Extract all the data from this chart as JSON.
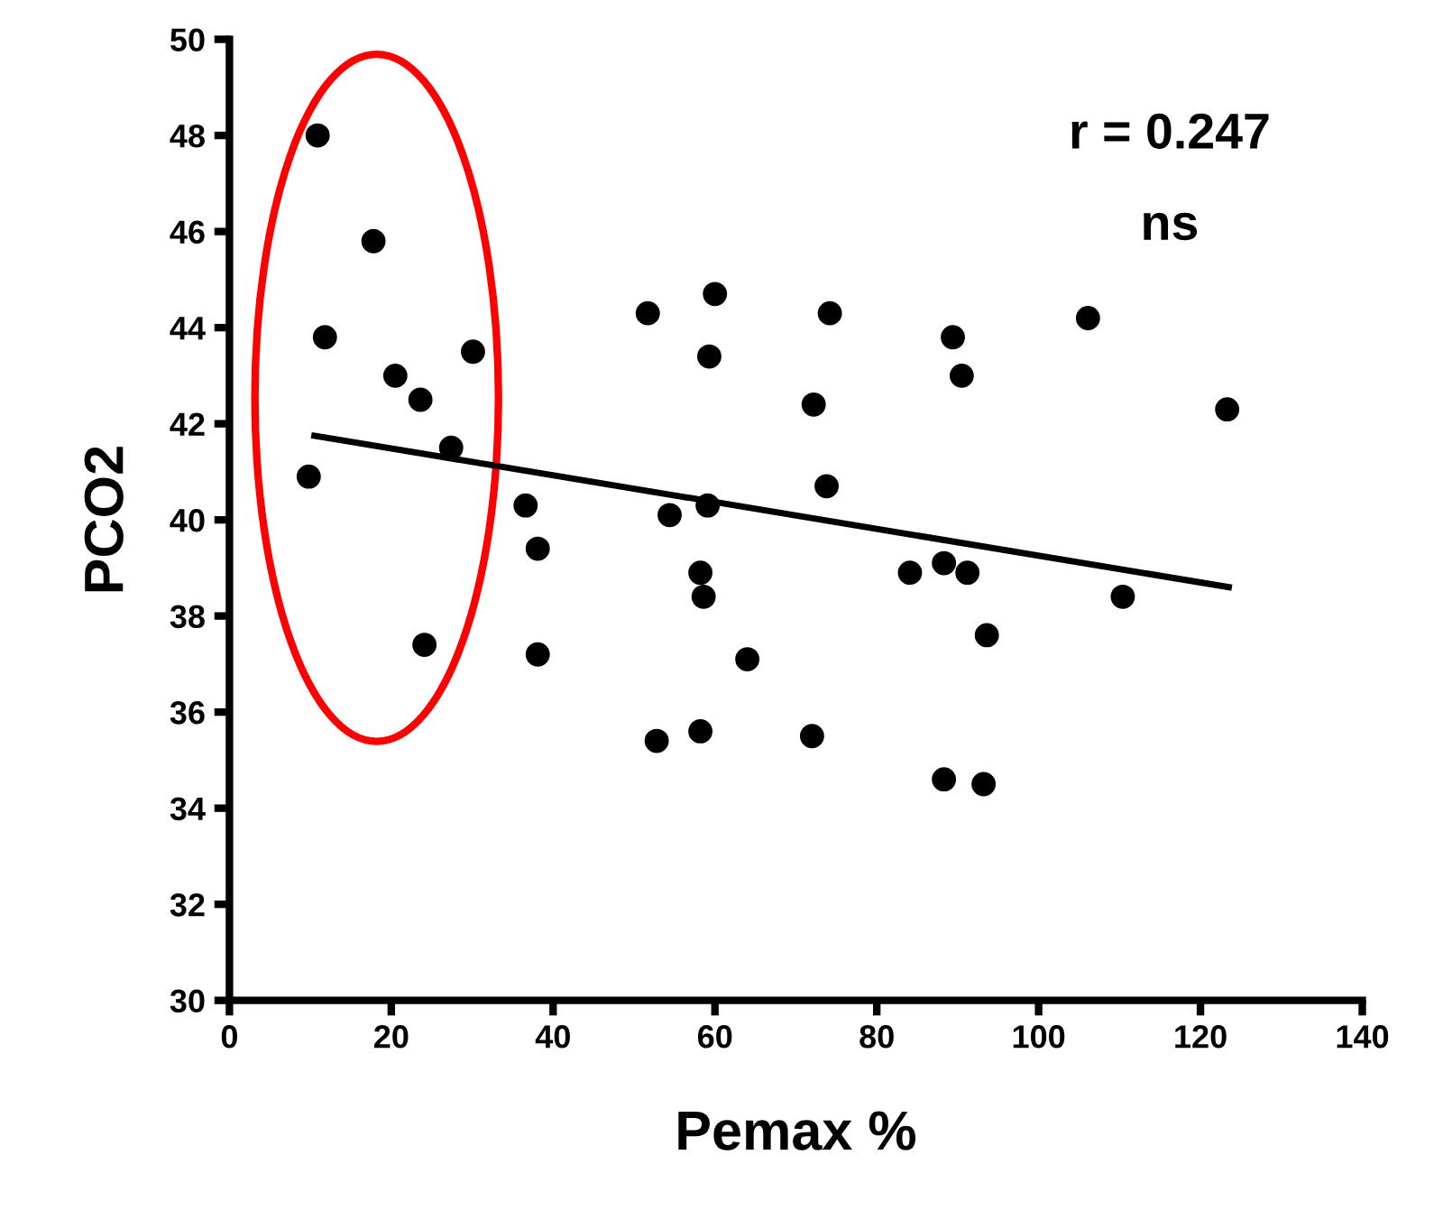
{
  "chart_data": {
    "type": "scatter",
    "xlabel": "Pemax %",
    "ylabel": "PCO2",
    "annotations": [
      "r = 0.247",
      "ns"
    ],
    "xlim": [
      0,
      140
    ],
    "xticks": [
      0,
      20,
      40,
      60,
      80,
      100,
      120,
      140
    ],
    "ylim": [
      30,
      50
    ],
    "yticks": [
      30,
      32,
      34,
      36,
      38,
      40,
      42,
      44,
      46,
      48,
      50
    ],
    "grid": false,
    "series": [
      {
        "marker": "circle",
        "color": "#000000",
        "x": [
          10.9,
          17.8,
          11.8,
          20.5,
          23.6,
          24.1,
          30.1,
          27.4,
          9.8,
          36.6,
          38.1,
          38.1,
          51.7,
          60,
          59.3,
          54.4,
          59.1,
          58.2,
          58.6,
          64,
          52.8,
          58.2,
          74.2,
          72.2,
          73.8,
          72,
          84.1,
          88.3,
          91.2,
          89.4,
          90.5,
          93.6,
          88.3,
          93.2,
          106.1,
          110.4,
          123.3
        ],
        "values": [
          48.0,
          45.8,
          43.8,
          43.0,
          42.5,
          37.4,
          43.5,
          41.5,
          40.9,
          40.3,
          39.4,
          37.2,
          44.3,
          44.7,
          43.4,
          40.1,
          40.3,
          38.9,
          38.4,
          37.1,
          35.4,
          35.6,
          44.3,
          42.4,
          40.7,
          35.5,
          38.9,
          39.1,
          38.9,
          43.8,
          43.0,
          37.6,
          34.6,
          34.5,
          44.2,
          38.4,
          42.3
        ]
      },
      {
        "type": "line",
        "color": "#000000",
        "x": [
          10.5,
          123.5
        ],
        "values": [
          41.75,
          38.6
        ]
      }
    ]
  }
}
